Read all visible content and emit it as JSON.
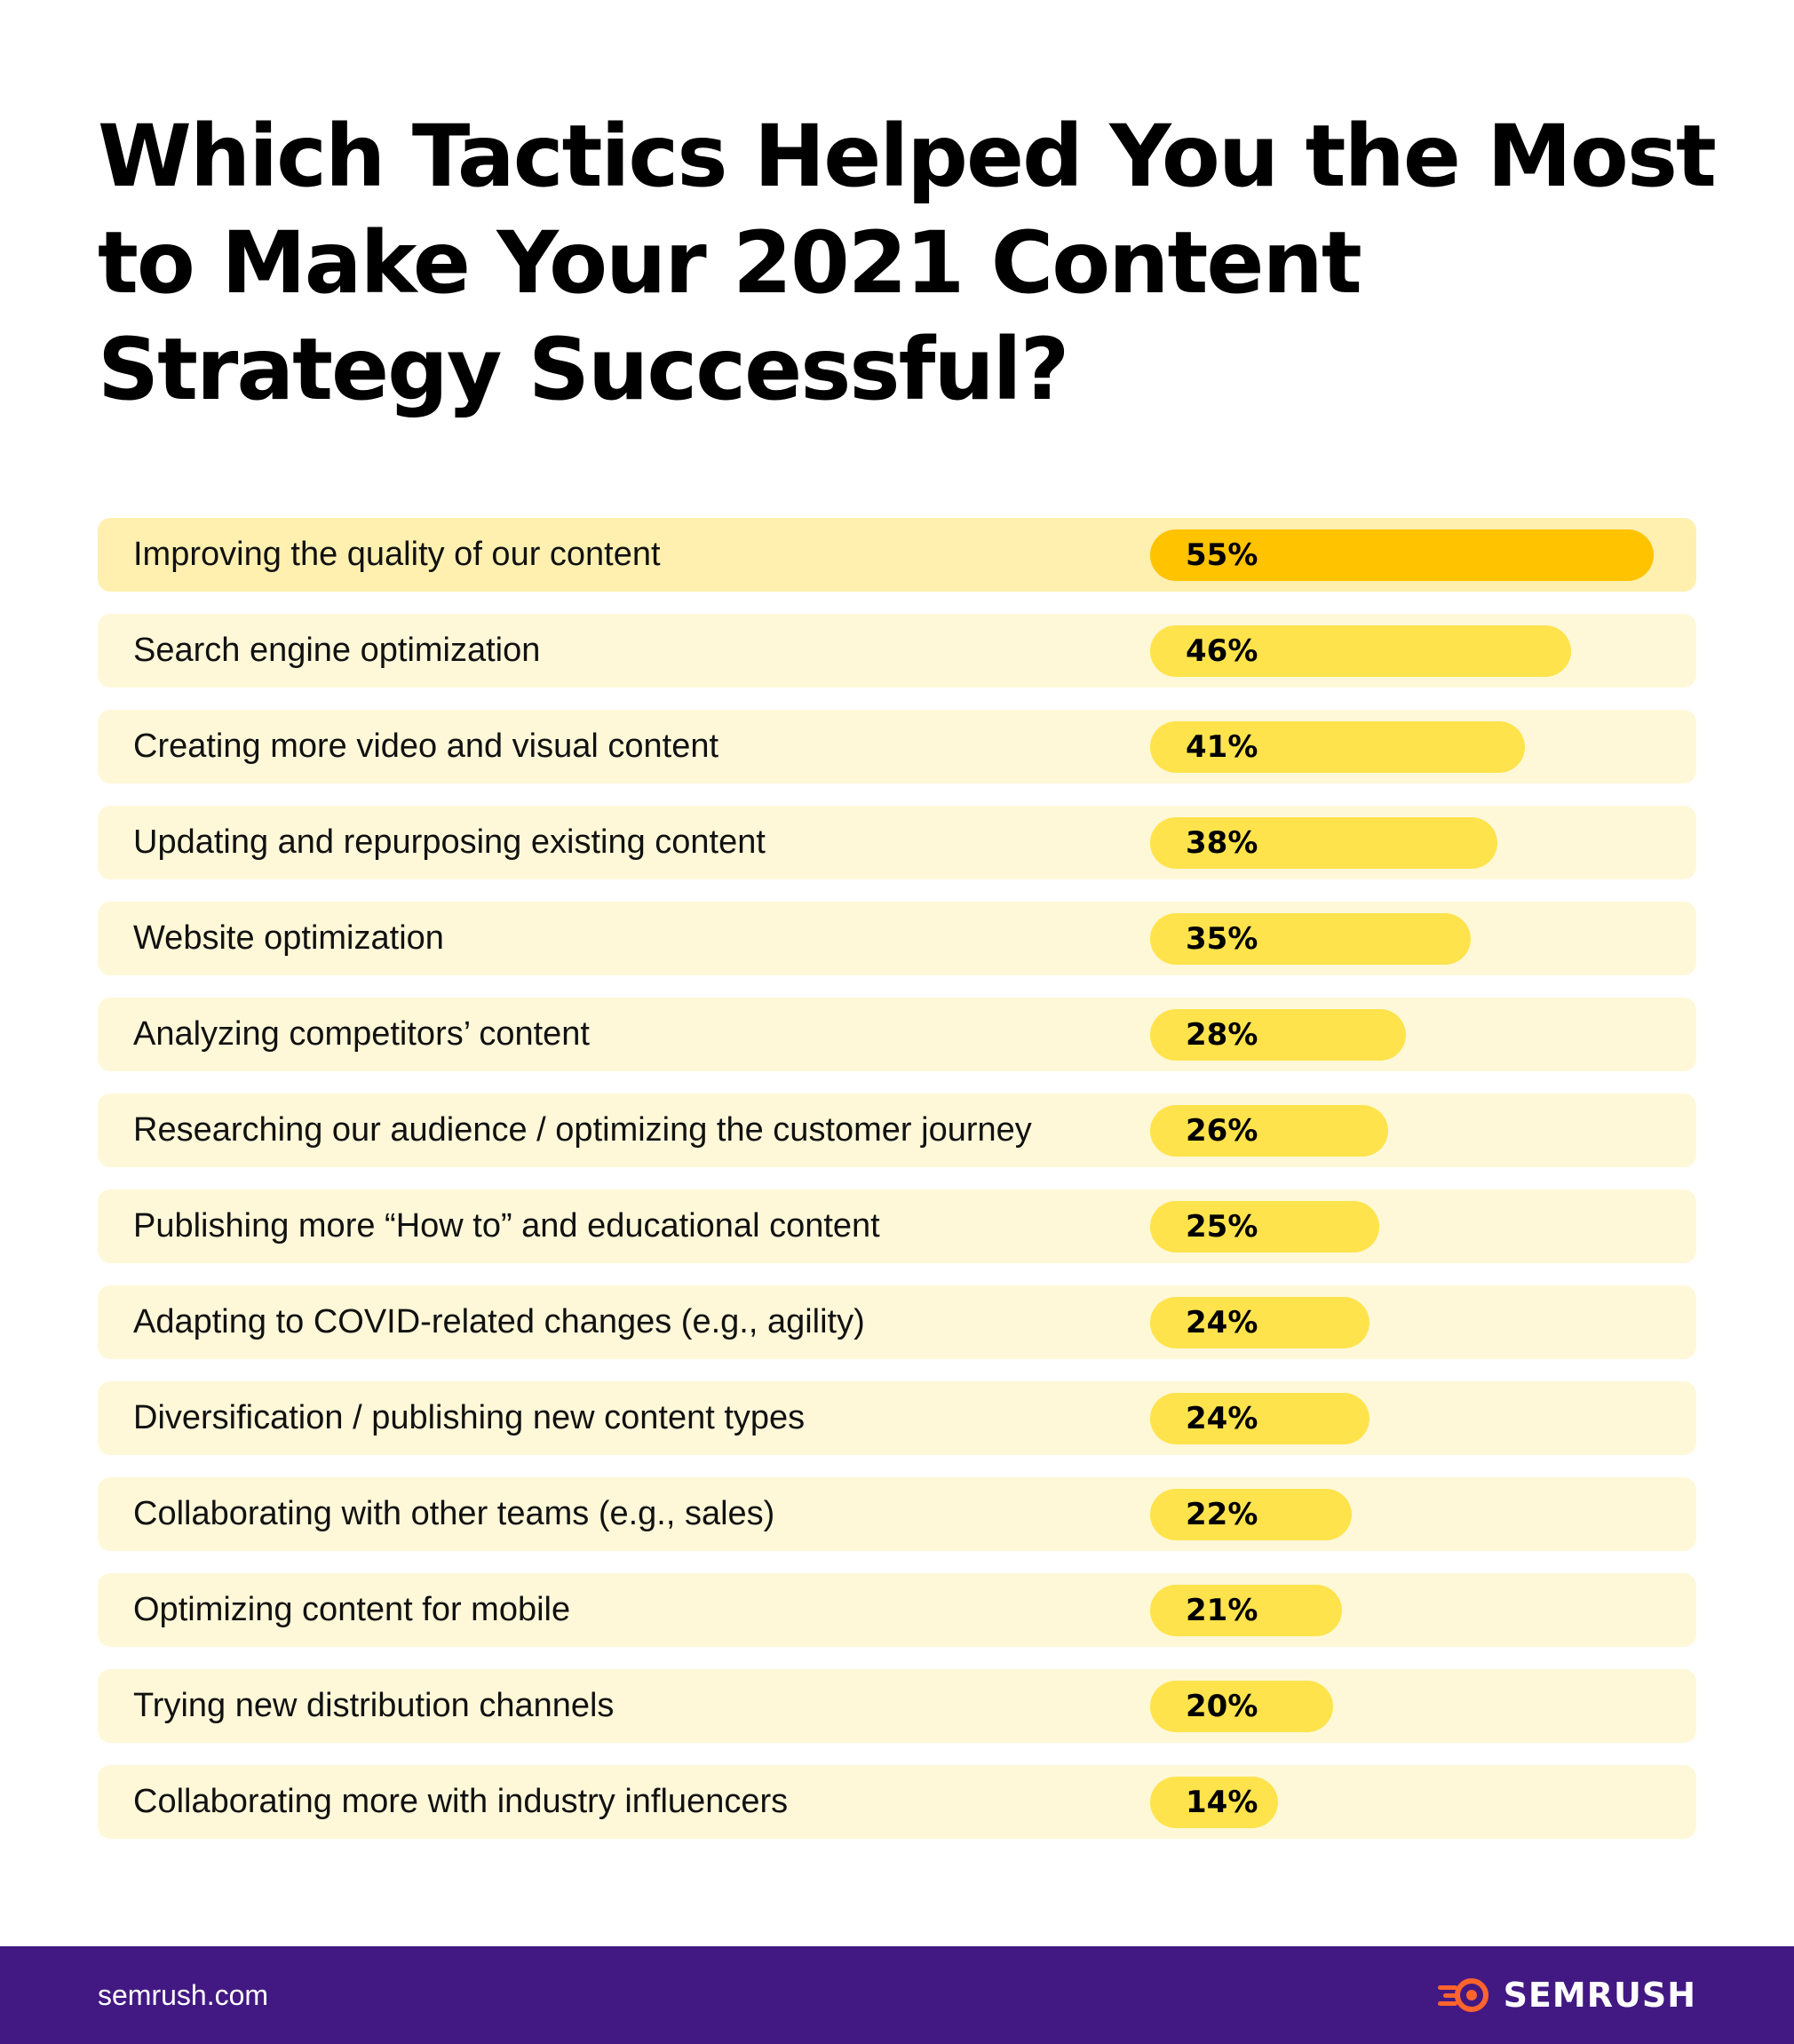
{
  "chart_data": {
    "type": "bar",
    "title_lines": [
      "Which Tactics Helped You the Most",
      "to Make Your 2021 Content",
      "Strategy Successful?"
    ],
    "categories": [
      "Improving the quality of our content",
      "Search engine optimization",
      "Creating more video and visual content",
      "Updating and repurposing existing content",
      "Website optimization",
      "Analyzing competitors’ content",
      "Researching our audience / optimizing the customer journey",
      "Publishing more “How to” and educational content",
      "Adapting to COVID-related changes (e.g., agility)",
      "Diversification / publishing new content types",
      "Collaborating with other teams (e.g., sales)",
      "Optimizing content for mobile",
      "Trying new distribution channels",
      "Collaborating more with industry influencers"
    ],
    "values": [
      55,
      46,
      41,
      38,
      35,
      28,
      26,
      25,
      24,
      24,
      22,
      21,
      20,
      14
    ],
    "value_labels": [
      "55%",
      "46%",
      "41%",
      "38%",
      "35%",
      "28%",
      "26%",
      "25%",
      "24%",
      "24%",
      "22%",
      "21%",
      "20%",
      "14%"
    ],
    "unit": "%",
    "highlight_index": 0,
    "colors": {
      "highlight_bar": "#ffc300",
      "bar": "#ffe34d",
      "highlight_row": "#fff0b0",
      "row": "#fff8d8"
    },
    "grid": false,
    "orientation": "horizontal"
  },
  "footer": {
    "url": "semrush.com",
    "brand": "SEMRUSH",
    "brand_icon": "semrush-fire-icon",
    "background": "#421983"
  }
}
